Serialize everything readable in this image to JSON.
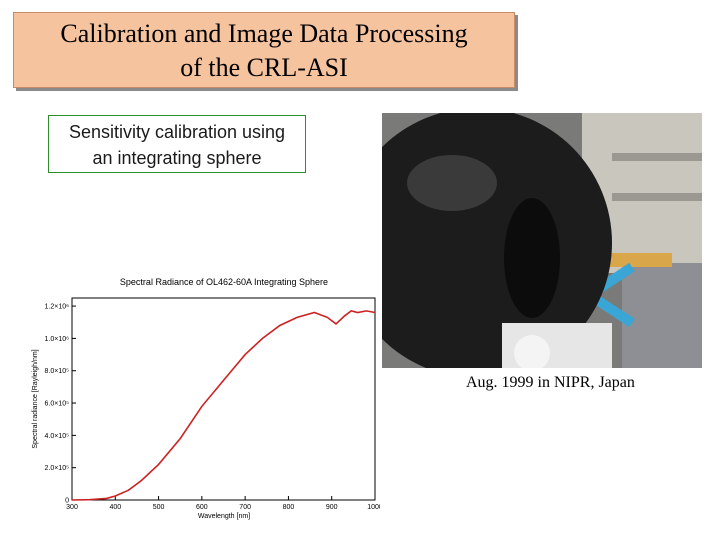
{
  "slide": {
    "title_line1": "Calibration and Image Data Processing",
    "title_line2": "of the CRL-ASI",
    "caption_line1": "Sensitivity calibration using",
    "caption_line2": "an integrating sphere",
    "photo_caption": "Aug. 1999 in NIPR, Japan"
  },
  "colors": {
    "title_fill": "#f6c39f",
    "caption_border": "#2e8b2e",
    "curve": "#cc2222"
  },
  "chart_data": {
    "type": "line",
    "title": "Spectral Radiance of OL462-60A Integrating Sphere",
    "xlabel": "Wavelength [nm]",
    "ylabel": "Spectral radiance [Rayleigh/nm]",
    "x_ticks": [
      300,
      400,
      500,
      600,
      700,
      800,
      900,
      1000
    ],
    "y_ticks": [
      0,
      200000,
      400000,
      600000,
      800000,
      1000000,
      1200000
    ],
    "y_tick_labels": [
      "0",
      "2.0×10⁵",
      "4.0×10⁵",
      "6.0×10⁵",
      "8.0×10⁵",
      "1.0×10⁶",
      "1.2×10⁶"
    ],
    "xlim": [
      300,
      1000
    ],
    "ylim": [
      0,
      1250000
    ],
    "grid": false,
    "series": [
      {
        "color": "#cc2222",
        "x": [
          300,
          340,
          380,
          400,
          430,
          460,
          500,
          550,
          600,
          650,
          700,
          740,
          780,
          820,
          860,
          890,
          910,
          930,
          945,
          960,
          980,
          1000
        ],
        "y": [
          0,
          2000,
          10000,
          25000,
          60000,
          120000,
          220000,
          380000,
          580000,
          740000,
          900000,
          1000000,
          1080000,
          1130000,
          1160000,
          1130000,
          1090000,
          1140000,
          1170000,
          1160000,
          1170000,
          1160000
        ]
      }
    ]
  }
}
